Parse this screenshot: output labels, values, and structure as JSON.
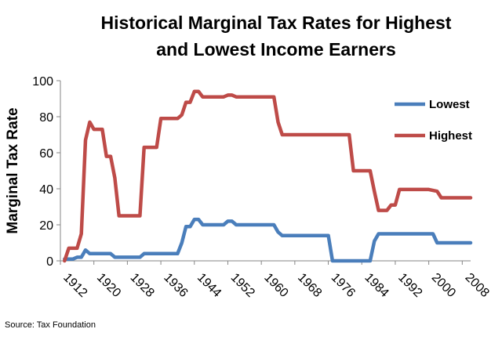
{
  "chart_data": {
    "type": "line",
    "title_lines": [
      "Historical Marginal Tax Rates for Highest",
      "and Lowest Income Earners"
    ],
    "ylabel": "Marginal Tax Rate",
    "xlabel": "",
    "xlim": [
      1912,
      2010
    ],
    "ylim": [
      0,
      100
    ],
    "yticks": [
      0,
      20,
      40,
      60,
      80,
      100
    ],
    "xticks": [
      1912,
      1920,
      1928,
      1936,
      1944,
      1952,
      1960,
      1968,
      1976,
      1984,
      1992,
      2000,
      2008
    ],
    "grid": false,
    "legend_position": "top-right",
    "source": "Source: Tax Foundation",
    "series": [
      {
        "name": "Lowest",
        "color": "#4a7ebb",
        "points": [
          [
            1913,
            1
          ],
          [
            1915,
            1
          ],
          [
            1916,
            2
          ],
          [
            1917,
            2
          ],
          [
            1918,
            6
          ],
          [
            1919,
            4
          ],
          [
            1922,
            4
          ],
          [
            1924,
            4
          ],
          [
            1925,
            2
          ],
          [
            1931,
            2
          ],
          [
            1932,
            4
          ],
          [
            1940,
            4
          ],
          [
            1941,
            10
          ],
          [
            1942,
            19
          ],
          [
            1943,
            19
          ],
          [
            1944,
            23
          ],
          [
            1945,
            23
          ],
          [
            1946,
            20
          ],
          [
            1951,
            20
          ],
          [
            1952,
            22
          ],
          [
            1953,
            22
          ],
          [
            1954,
            20
          ],
          [
            1963,
            20
          ],
          [
            1964,
            16
          ],
          [
            1965,
            14
          ],
          [
            1976,
            14
          ],
          [
            1977,
            0
          ],
          [
            1986,
            0
          ],
          [
            1987,
            11
          ],
          [
            1988,
            15
          ],
          [
            2000,
            15
          ],
          [
            2001,
            15
          ],
          [
            2002,
            10
          ],
          [
            2010,
            10
          ]
        ]
      },
      {
        "name": "Highest",
        "color": "#be4b48",
        "points": [
          [
            1913,
            0
          ],
          [
            1914,
            7
          ],
          [
            1916,
            7
          ],
          [
            1917,
            15
          ],
          [
            1918,
            67
          ],
          [
            1919,
            77
          ],
          [
            1920,
            73
          ],
          [
            1922,
            73
          ],
          [
            1923,
            58
          ],
          [
            1924,
            58
          ],
          [
            1925,
            46
          ],
          [
            1926,
            25
          ],
          [
            1931,
            25
          ],
          [
            1932,
            63
          ],
          [
            1935,
            63
          ],
          [
            1936,
            79
          ],
          [
            1940,
            79
          ],
          [
            1941,
            81
          ],
          [
            1942,
            88
          ],
          [
            1943,
            88
          ],
          [
            1944,
            94
          ],
          [
            1945,
            94
          ],
          [
            1946,
            91
          ],
          [
            1951,
            91
          ],
          [
            1952,
            92
          ],
          [
            1953,
            92
          ],
          [
            1954,
            91
          ],
          [
            1963,
            91
          ],
          [
            1964,
            77
          ],
          [
            1965,
            70
          ],
          [
            1981,
            70
          ],
          [
            1982,
            50
          ],
          [
            1986,
            50
          ],
          [
            1987,
            38.5
          ],
          [
            1988,
            28
          ],
          [
            1990,
            28
          ],
          [
            1991,
            31
          ],
          [
            1992,
            31
          ],
          [
            1993,
            39.6
          ],
          [
            2000,
            39.6
          ],
          [
            2001,
            39.1
          ],
          [
            2002,
            38.6
          ],
          [
            2003,
            35
          ],
          [
            2010,
            35
          ]
        ]
      }
    ]
  }
}
